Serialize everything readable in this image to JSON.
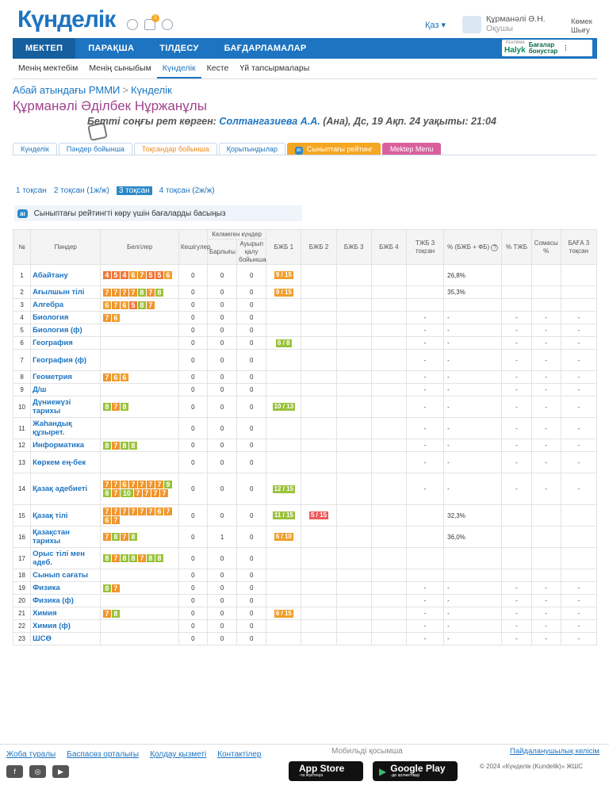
{
  "header": {
    "logo": "Күнделік",
    "lang": "Қаз",
    "user_name": "Құрманәлі Ә.Н.",
    "user_role": "Оқушы",
    "help_line1": "Көмек",
    "help_line2": "Шығу",
    "notif_count": "1"
  },
  "mainnav": {
    "items": [
      "МЕКТЕП",
      "ПАРАҚША",
      "ТІЛДЕСУ",
      "БАҒДАРЛАМАЛАР"
    ],
    "ad_label": "РЕКЛАМА",
    "ad_brand": "Halyk",
    "ad_text1": "Бағалар",
    "ad_text2": "бонустар"
  },
  "subnav": {
    "items": [
      "Менің мектебім",
      "Менің сыныбым",
      "Күнделік",
      "Кесте",
      "Үй тапсырмалары"
    ]
  },
  "breadcrumb": {
    "school": "Абай атындағы РММИ",
    "page": "Күнделік"
  },
  "person_name": "Құрманәлі Әділбек Нұржанұлы",
  "last_seen": {
    "prefix": "Бетті соңғы рет көрген:",
    "name": "Солтангазиева А.А.",
    "suffix": "(Ана), Дс, 19 Ақп. 24 уақыты: 21:04"
  },
  "tabs": [
    "Күнделік",
    "Пәндер бойынша",
    "Тоқсандар бойынша",
    "Қорытындылар",
    "Сыныптағы рейтинг",
    "Mektep Menu"
  ],
  "quarters": [
    "1 тоқсан",
    "2 тоқсан (1ж/ж)",
    "3 тоқсан",
    "4 тоқсан (2ж/ж)"
  ],
  "rating_hint": "Сыныптағы рейтингті көру үшін бағаларды басыңыз",
  "table": {
    "headers": {
      "no": "№",
      "subject": "Пәндер",
      "marks": "Белгілер",
      "late": "Кешігулер",
      "absent_group": "Келмеген күндер",
      "absent_total": "Барлығы",
      "sick": "Ауырып қалу бойынша",
      "bjb1": "БЖБ 1",
      "bjb2": "БЖБ 2",
      "bjb3": "БЖБ 3",
      "bjb4": "БЖБ 4",
      "tjb": "ТЖБ 3 тоқсан",
      "pct_bjb": "% (БЖБ + ФБ)",
      "pct_tjb": "% ТЖБ",
      "total_pct": "Сомасы %",
      "grade": "БАҒА 3 тоқсан"
    },
    "rows": [
      {
        "n": "1",
        "s": "Абайтану",
        "marks": [
          4,
          5,
          4,
          6,
          7,
          5,
          5,
          6
        ],
        "late": "0",
        "abs": "0",
        "sick": "0",
        "b1": "9 / 15",
        "b1c": "o",
        "b2": "",
        "tjb": "",
        "p": "26,8%",
        "ptjb": "",
        "sum": "",
        "gr": ""
      },
      {
        "n": "2",
        "s": "Ағылшын тілі",
        "marks": [
          7,
          7,
          7,
          7,
          8,
          7,
          8
        ],
        "late": "0",
        "abs": "0",
        "sick": "0",
        "b1": "9 / 15",
        "b1c": "o",
        "b2": "",
        "tjb": "",
        "p": "35,3%",
        "ptjb": "",
        "sum": "",
        "gr": ""
      },
      {
        "n": "3",
        "s": "Алгебра",
        "marks": [
          6,
          7,
          6,
          5,
          8,
          7
        ],
        "late": "0",
        "abs": "0",
        "sick": "0",
        "b1": "",
        "b2": "",
        "tjb": "",
        "p": "",
        "ptjb": "",
        "sum": "",
        "gr": ""
      },
      {
        "n": "4",
        "s": "Биология",
        "marks": [
          7,
          6
        ],
        "late": "0",
        "abs": "0",
        "sick": "0",
        "b1": "",
        "b2": "",
        "tjb": "-",
        "p": "-",
        "ptjb": "-",
        "sum": "-",
        "gr": "-"
      },
      {
        "n": "5",
        "s": "Биология (ф)",
        "marks": [],
        "late": "0",
        "abs": "0",
        "sick": "0",
        "b1": "",
        "b2": "",
        "tjb": "-",
        "p": "-",
        "ptjb": "-",
        "sum": "-",
        "gr": "-"
      },
      {
        "n": "6",
        "s": "География",
        "marks": [],
        "late": "0",
        "abs": "0",
        "sick": "0",
        "b1": "6 / 8",
        "b1c": "g",
        "b2": "",
        "tjb": "-",
        "p": "-",
        "ptjb": "-",
        "sum": "-",
        "gr": "-"
      },
      {
        "n": "7",
        "s": "География (ф)",
        "marks": [],
        "late": "0",
        "abs": "0",
        "sick": "0",
        "b1": "",
        "b2": "",
        "tjb": "-",
        "p": "-",
        "ptjb": "-",
        "sum": "-",
        "gr": "-"
      },
      {
        "n": "8",
        "s": "Геометрия",
        "marks": [
          7,
          6,
          6
        ],
        "late": "0",
        "abs": "0",
        "sick": "0",
        "b1": "",
        "b2": "",
        "tjb": "-",
        "p": "-",
        "ptjb": "-",
        "sum": "-",
        "gr": "-"
      },
      {
        "n": "9",
        "s": "Д/ш",
        "marks": [],
        "late": "0",
        "abs": "0",
        "sick": "0",
        "b1": "",
        "b2": "",
        "tjb": "-",
        "p": "-",
        "ptjb": "-",
        "sum": "-",
        "gr": "-"
      },
      {
        "n": "10",
        "s": "Дүниежүзі тарихы",
        "marks": [
          8,
          7,
          8
        ],
        "late": "0",
        "abs": "0",
        "sick": "0",
        "b1": "10 / 13",
        "b1c": "g",
        "b2": "",
        "tjb": "-",
        "p": "-",
        "ptjb": "-",
        "sum": "-",
        "gr": "-"
      },
      {
        "n": "11",
        "s": "Жаһандық құзырет.",
        "marks": [],
        "late": "0",
        "abs": "0",
        "sick": "0",
        "b1": "",
        "b2": "",
        "tjb": "-",
        "p": "-",
        "ptjb": "-",
        "sum": "-",
        "gr": "-"
      },
      {
        "n": "12",
        "s": "Информатика",
        "marks": [
          8,
          7,
          8,
          8
        ],
        "late": "0",
        "abs": "0",
        "sick": "0",
        "b1": "",
        "b2": "",
        "tjb": "-",
        "p": "-",
        "ptjb": "-",
        "sum": "-",
        "gr": "-"
      },
      {
        "n": "13",
        "s": "Көркем ең-бек",
        "marks": [],
        "late": "0",
        "abs": "0",
        "sick": "0",
        "b1": "",
        "b2": "",
        "tjb": "-",
        "p": "-",
        "ptjb": "-",
        "sum": "-",
        "gr": "-"
      },
      {
        "n": "14",
        "s": "Қазақ әдебиеті",
        "marks": [
          7,
          7,
          6,
          7,
          7,
          7,
          7,
          9,
          8,
          7,
          10,
          7,
          7,
          7,
          7
        ],
        "late": "0",
        "abs": "0",
        "sick": "0",
        "b1": "12 / 15",
        "b1c": "g",
        "b2": "",
        "tjb": "-",
        "p": "-",
        "ptjb": "-",
        "sum": "-",
        "gr": "-"
      },
      {
        "n": "15",
        "s": "Қазақ тілі",
        "marks": [
          7,
          7,
          7,
          7,
          7,
          7,
          6,
          7,
          6,
          7
        ],
        "late": "0",
        "abs": "0",
        "sick": "0",
        "b1": "11 / 15",
        "b1c": "g",
        "b2": "5 / 15",
        "b2c": "r",
        "tjb": "",
        "p": "32,3%",
        "ptjb": "",
        "sum": "",
        "gr": ""
      },
      {
        "n": "16",
        "s": "Қазақстан тарихы",
        "marks": [
          7,
          8,
          7,
          8
        ],
        "late": "0",
        "abs": "1",
        "sick": "0",
        "b1": "6 / 10",
        "b1c": "o",
        "b2": "",
        "tjb": "",
        "p": "36,0%",
        "ptjb": "",
        "sum": "",
        "gr": ""
      },
      {
        "n": "17",
        "s": "Орыс тілі мен әдеб.",
        "marks": [
          8,
          7,
          8,
          8,
          7,
          8,
          8
        ],
        "late": "0",
        "abs": "0",
        "sick": "0",
        "b1": "",
        "b2": "",
        "tjb": "",
        "p": "",
        "ptjb": "",
        "sum": "",
        "gr": ""
      },
      {
        "n": "18",
        "s": "Сынып сағаты",
        "marks": [],
        "late": "0",
        "abs": "0",
        "sick": "0",
        "b1": "",
        "b2": "",
        "tjb": "",
        "p": "",
        "ptjb": "",
        "sum": "",
        "gr": ""
      },
      {
        "n": "19",
        "s": "Физика",
        "marks": [
          8,
          7
        ],
        "late": "0",
        "abs": "0",
        "sick": "0",
        "b1": "",
        "b2": "",
        "tjb": "-",
        "p": "-",
        "ptjb": "-",
        "sum": "-",
        "gr": "-"
      },
      {
        "n": "20",
        "s": "Физика (ф)",
        "marks": [],
        "late": "0",
        "abs": "0",
        "sick": "0",
        "b1": "",
        "b2": "",
        "tjb": "-",
        "p": "-",
        "ptjb": "-",
        "sum": "-",
        "gr": "-"
      },
      {
        "n": "21",
        "s": "Химия",
        "marks": [
          7,
          8
        ],
        "late": "0",
        "abs": "0",
        "sick": "0",
        "b1": "6 / 15",
        "b1c": "o",
        "b2": "",
        "tjb": "-",
        "p": "-",
        "ptjb": "-",
        "sum": "-",
        "gr": "-"
      },
      {
        "n": "22",
        "s": "Химия (ф)",
        "marks": [],
        "late": "0",
        "abs": "0",
        "sick": "0",
        "b1": "",
        "b2": "",
        "tjb": "-",
        "p": "-",
        "ptjb": "-",
        "sum": "-",
        "gr": "-"
      },
      {
        "n": "23",
        "s": "ШСӨ",
        "marks": [],
        "late": "0",
        "abs": "0",
        "sick": "0",
        "b1": "",
        "b2": "",
        "tjb": "-",
        "p": "-",
        "ptjb": "-",
        "sum": "-",
        "gr": "-"
      }
    ]
  },
  "footer": {
    "links": [
      "Жоба туралы",
      "Баспасөз орталығы",
      "Қолдау қызметі",
      "Контактілер"
    ],
    "mobile_title": "Мобильді қосымша",
    "agreement": "Пайдаланушылық келісім",
    "appstore": "App Store",
    "appstore_sub": "-та жүктеңіз",
    "googleplay": "Google Play",
    "googleplay_sub": "-де қолжетімді",
    "copyright": "© 2024 «Күнделік (Kundelik)» ЖШС"
  }
}
